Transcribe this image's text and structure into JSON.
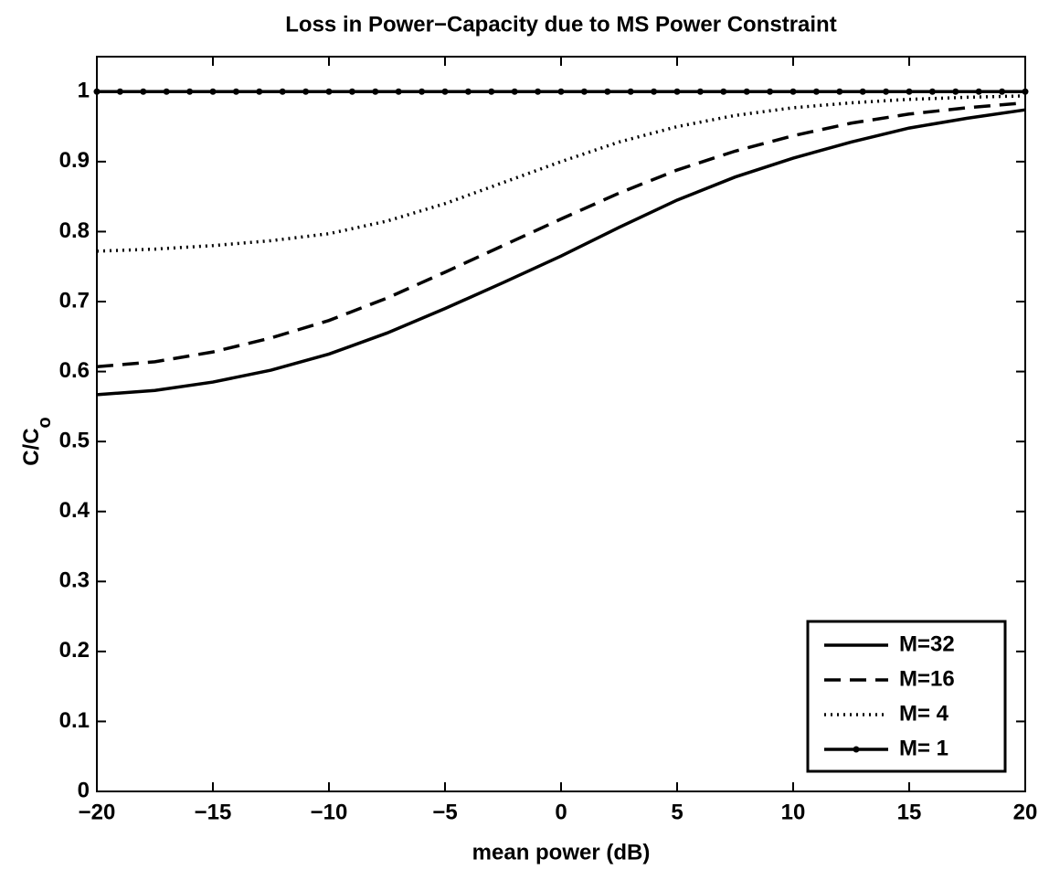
{
  "chart_data": {
    "type": "line",
    "title": "Loss in Power−Capacity due to MS Power Constraint",
    "xlabel": "mean power (dB)",
    "ylabel": "C/C",
    "ylabel_subscript": "o",
    "x": [
      -20,
      -17.5,
      -15,
      -12.5,
      -10,
      -7.5,
      -5,
      -2.5,
      0,
      2.5,
      5,
      7.5,
      10,
      12.5,
      15,
      17.5,
      20
    ],
    "series": [
      {
        "name": "M=32",
        "color": "#000000",
        "dash": "solid",
        "values": [
          0.567,
          0.573,
          0.585,
          0.602,
          0.625,
          0.655,
          0.69,
          0.727,
          0.765,
          0.806,
          0.845,
          0.878,
          0.905,
          0.928,
          0.948,
          0.962,
          0.974
        ]
      },
      {
        "name": "M=16",
        "color": "#000000",
        "dash": "dashed",
        "values": [
          0.607,
          0.614,
          0.628,
          0.648,
          0.673,
          0.705,
          0.742,
          0.78,
          0.818,
          0.855,
          0.888,
          0.915,
          0.937,
          0.955,
          0.968,
          0.977,
          0.984
        ]
      },
      {
        "name": "M= 4",
        "color": "#000000",
        "dash": "dotted",
        "values": [
          0.772,
          0.775,
          0.78,
          0.787,
          0.797,
          0.815,
          0.84,
          0.87,
          0.9,
          0.928,
          0.95,
          0.966,
          0.977,
          0.984,
          0.989,
          0.992,
          0.994
        ]
      },
      {
        "name": "M= 1",
        "color": "#000000",
        "dash": "solid",
        "marker": "dot",
        "x": [
          -20,
          -19,
          -18,
          -17,
          -16,
          -15,
          -14,
          -13,
          -12,
          -11,
          -10,
          -9,
          -8,
          -7,
          -6,
          -5,
          -4,
          -3,
          -2,
          -1,
          0,
          1,
          2,
          3,
          4,
          5,
          6,
          7,
          8,
          9,
          10,
          11,
          12,
          13,
          14,
          15,
          16,
          17,
          18,
          19,
          20
        ],
        "values": [
          1,
          1,
          1,
          1,
          1,
          1,
          1,
          1,
          1,
          1,
          1,
          1,
          1,
          1,
          1,
          1,
          1,
          1,
          1,
          1,
          1,
          1,
          1,
          1,
          1,
          1,
          1,
          1,
          1,
          1,
          1,
          1,
          1,
          1,
          1,
          1,
          1,
          1,
          1,
          1,
          1
        ]
      }
    ],
    "xlim": [
      -20,
      20
    ],
    "xticks": [
      {
        "value": -20,
        "label": "−20"
      },
      {
        "value": -15,
        "label": "−15"
      },
      {
        "value": -10,
        "label": "−10"
      },
      {
        "value": -5,
        "label": "−5"
      },
      0,
      5,
      10,
      15,
      20
    ],
    "ylim": [
      0,
      1.05
    ],
    "yticks": [
      0,
      0.1,
      0.2,
      0.3,
      0.4,
      0.5,
      0.6,
      0.7,
      0.8,
      0.9,
      1
    ],
    "grid": false,
    "legend": "lower right"
  }
}
